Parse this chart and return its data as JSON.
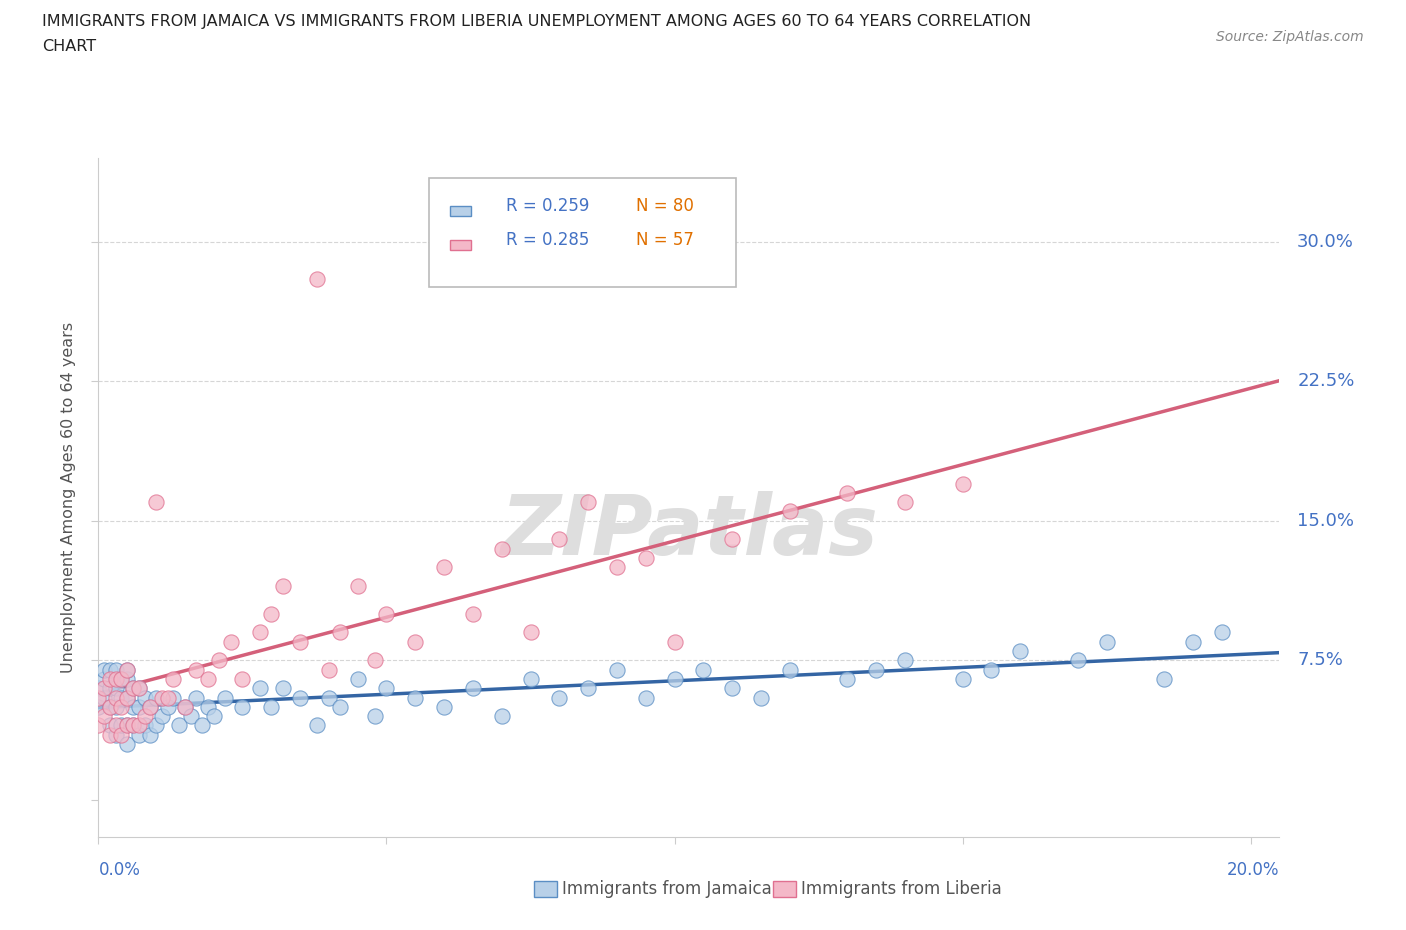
{
  "title_line1": "IMMIGRANTS FROM JAMAICA VS IMMIGRANTS FROM LIBERIA UNEMPLOYMENT AMONG AGES 60 TO 64 YEARS CORRELATION",
  "title_line2": "CHART",
  "source_text": "Source: ZipAtlas.com",
  "ylabel": "Unemployment Among Ages 60 to 64 years",
  "legend_labels": [
    "Immigrants from Jamaica",
    "Immigrants from Liberia"
  ],
  "legend_r_jamaica": "R = 0.259",
  "legend_n_jamaica": "N = 80",
  "legend_r_liberia": "R = 0.285",
  "legend_n_liberia": "N = 57",
  "color_jamaica_fill": "#b8d0e8",
  "color_liberia_fill": "#f4b8c8",
  "color_jamaica_edge": "#5b8ec4",
  "color_liberia_edge": "#e07090",
  "color_jamaica_line": "#3465a4",
  "color_liberia_line": "#d4607a",
  "color_axis_label": "#4472c4",
  "color_grid": "#cccccc",
  "ytick_vals": [
    0.0,
    0.075,
    0.15,
    0.225,
    0.3
  ],
  "ytick_labels": [
    "",
    "7.5%",
    "15.0%",
    "22.5%",
    "30.0%"
  ],
  "xlim": [
    0.0,
    0.205
  ],
  "ylim": [
    -0.02,
    0.345
  ],
  "watermark": "ZIPatlas",
  "jamaica_x": [
    0.0,
    0.0,
    0.001,
    0.001,
    0.001,
    0.002,
    0.002,
    0.002,
    0.002,
    0.003,
    0.003,
    0.003,
    0.003,
    0.004,
    0.004,
    0.004,
    0.005,
    0.005,
    0.005,
    0.005,
    0.005,
    0.006,
    0.006,
    0.006,
    0.007,
    0.007,
    0.007,
    0.008,
    0.008,
    0.009,
    0.009,
    0.01,
    0.01,
    0.011,
    0.012,
    0.013,
    0.014,
    0.015,
    0.016,
    0.017,
    0.018,
    0.019,
    0.02,
    0.022,
    0.025,
    0.028,
    0.03,
    0.032,
    0.035,
    0.038,
    0.04,
    0.042,
    0.045,
    0.048,
    0.05,
    0.055,
    0.06,
    0.065,
    0.07,
    0.075,
    0.08,
    0.085,
    0.09,
    0.095,
    0.1,
    0.105,
    0.11,
    0.115,
    0.12,
    0.13,
    0.135,
    0.14,
    0.15,
    0.155,
    0.16,
    0.17,
    0.175,
    0.185,
    0.19,
    0.195
  ],
  "jamaica_y": [
    0.05,
    0.06,
    0.055,
    0.065,
    0.07,
    0.04,
    0.05,
    0.06,
    0.07,
    0.035,
    0.05,
    0.06,
    0.07,
    0.04,
    0.055,
    0.065,
    0.03,
    0.04,
    0.055,
    0.065,
    0.07,
    0.04,
    0.05,
    0.06,
    0.035,
    0.05,
    0.06,
    0.04,
    0.055,
    0.035,
    0.05,
    0.04,
    0.055,
    0.045,
    0.05,
    0.055,
    0.04,
    0.05,
    0.045,
    0.055,
    0.04,
    0.05,
    0.045,
    0.055,
    0.05,
    0.06,
    0.05,
    0.06,
    0.055,
    0.04,
    0.055,
    0.05,
    0.065,
    0.045,
    0.06,
    0.055,
    0.05,
    0.06,
    0.045,
    0.065,
    0.055,
    0.06,
    0.07,
    0.055,
    0.065,
    0.07,
    0.06,
    0.055,
    0.07,
    0.065,
    0.07,
    0.075,
    0.065,
    0.07,
    0.08,
    0.075,
    0.085,
    0.065,
    0.085,
    0.09
  ],
  "liberia_x": [
    0.0,
    0.0,
    0.001,
    0.001,
    0.002,
    0.002,
    0.002,
    0.003,
    0.003,
    0.003,
    0.004,
    0.004,
    0.004,
    0.005,
    0.005,
    0.005,
    0.006,
    0.006,
    0.007,
    0.007,
    0.008,
    0.009,
    0.01,
    0.011,
    0.012,
    0.013,
    0.015,
    0.017,
    0.019,
    0.021,
    0.023,
    0.025,
    0.028,
    0.03,
    0.032,
    0.035,
    0.038,
    0.04,
    0.042,
    0.045,
    0.048,
    0.05,
    0.055,
    0.06,
    0.065,
    0.07,
    0.075,
    0.08,
    0.085,
    0.09,
    0.095,
    0.1,
    0.11,
    0.12,
    0.13,
    0.14,
    0.15
  ],
  "liberia_y": [
    0.04,
    0.055,
    0.045,
    0.06,
    0.035,
    0.05,
    0.065,
    0.04,
    0.055,
    0.065,
    0.035,
    0.05,
    0.065,
    0.04,
    0.055,
    0.07,
    0.04,
    0.06,
    0.04,
    0.06,
    0.045,
    0.05,
    0.16,
    0.055,
    0.055,
    0.065,
    0.05,
    0.07,
    0.065,
    0.075,
    0.085,
    0.065,
    0.09,
    0.1,
    0.115,
    0.085,
    0.28,
    0.07,
    0.09,
    0.115,
    0.075,
    0.1,
    0.085,
    0.125,
    0.1,
    0.135,
    0.09,
    0.14,
    0.16,
    0.125,
    0.13,
    0.085,
    0.14,
    0.155,
    0.165,
    0.16,
    0.17
  ]
}
